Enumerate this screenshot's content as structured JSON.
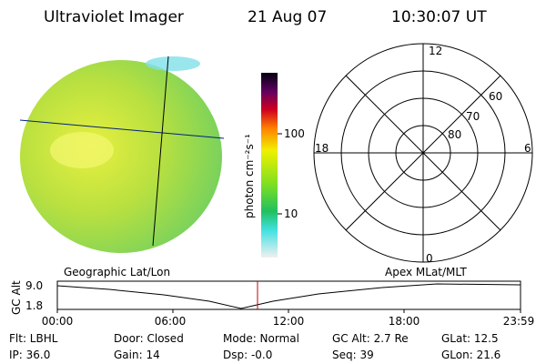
{
  "header": {
    "title": "Ultraviolet Imager",
    "date": "21 Aug 07",
    "time": "10:30:07 UT"
  },
  "colorbar": {
    "label": "photon cm⁻²s⁻¹",
    "ticks": [
      "100",
      "10"
    ]
  },
  "polar": {
    "top": "12",
    "left": "18",
    "right": "6",
    "bottom": "0",
    "rings": [
      "60",
      "70",
      "80"
    ]
  },
  "timeline": {
    "left_title": "Geographic Lat/Lon",
    "right_title": "Apex MLat/MLT",
    "axis_label": "GC Alt",
    "y_top": "9.0",
    "y_bottom": "1.8",
    "x_ticks": [
      "00:00",
      "06:00",
      "12:00",
      "18:00",
      "23:59"
    ]
  },
  "footer": [
    [
      "Flt: LBHL",
      "IP: 36.0"
    ],
    [
      "Door: Closed",
      "Gain: 14"
    ],
    [
      "Mode: Normal",
      "Dsp: -0.0"
    ],
    [
      "GC Alt: 2.7 Re",
      "Seq: 39"
    ],
    [
      "GLat: 12.5",
      "GLon: 21.6"
    ]
  ]
}
